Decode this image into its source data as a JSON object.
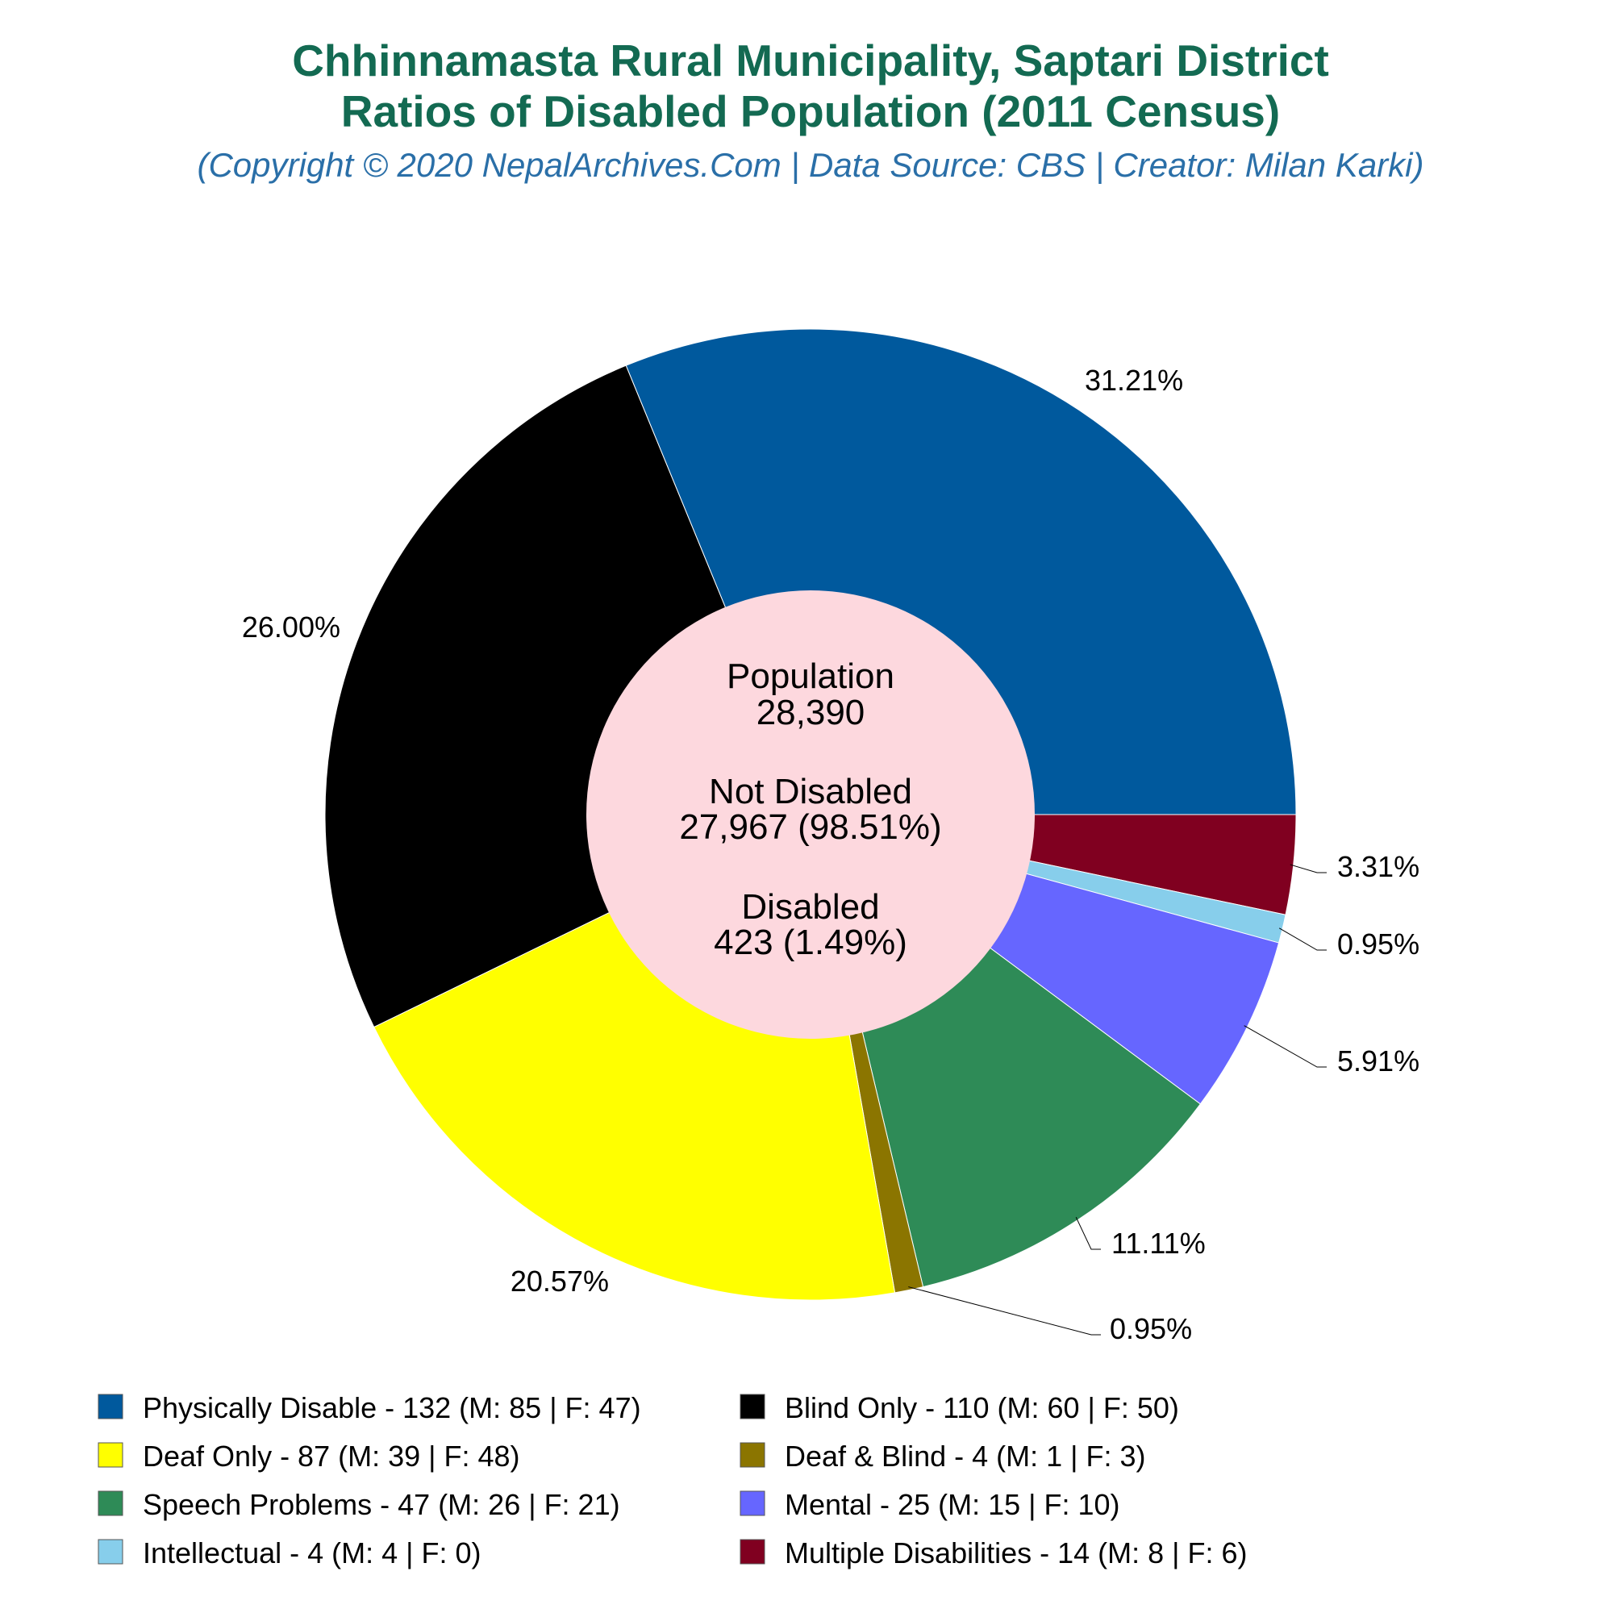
{
  "chart_data": {
    "type": "pie",
    "title": "Chhinnamasta Rural Municipality, Saptari District",
    "subtitle": "Ratios of Disabled Population (2011 Census)",
    "caption": "(Copyright © 2020 NepalArchives.Com | Data Source: CBS | Creator: Milan Karki)",
    "center": {
      "population_label": "Population",
      "population_value": "28,390",
      "not_disabled_label": "Not Disabled",
      "not_disabled_value": "27,967 (98.51%)",
      "disabled_label": "Disabled",
      "disabled_value": "423 (1.49%)"
    },
    "slices": [
      {
        "legend": "Physically Disable - 132 (M: 85 | F: 47)",
        "value": 132,
        "percent_label": "31.21%",
        "color": "#00599d"
      },
      {
        "legend": "Multiple Disabilities - 14 (M: 8 | F: 6)",
        "value": 14,
        "percent_label": "3.31%",
        "color": "#800020"
      },
      {
        "legend": "Intellectual - 4 (M: 4 | F: 0)",
        "value": 4,
        "percent_label": "0.95%",
        "color": "#87ceeb"
      },
      {
        "legend": "Mental - 25 (M: 15 | F: 10)",
        "value": 25,
        "percent_label": "5.91%",
        "color": "#6666ff"
      },
      {
        "legend": "Speech Problems - 47 (M: 26 | F: 21)",
        "value": 47,
        "percent_label": "11.11%",
        "color": "#2e8b57"
      },
      {
        "legend": "Deaf & Blind - 4 (M: 1 | F: 3)",
        "value": 4,
        "percent_label": "0.95%",
        "color": "#8b7500"
      },
      {
        "legend": "Deaf Only - 87 (M: 39 | F: 48)",
        "value": 87,
        "percent_label": "20.57%",
        "color": "#ffff00"
      },
      {
        "legend": "Blind Only - 110 (M: 60 | F: 50)",
        "value": 110,
        "percent_label": "26.00%",
        "color": "#000000"
      }
    ],
    "legend_order": [
      0,
      7,
      6,
      5,
      4,
      3,
      2,
      1
    ],
    "center_color": "#fdd8de"
  }
}
